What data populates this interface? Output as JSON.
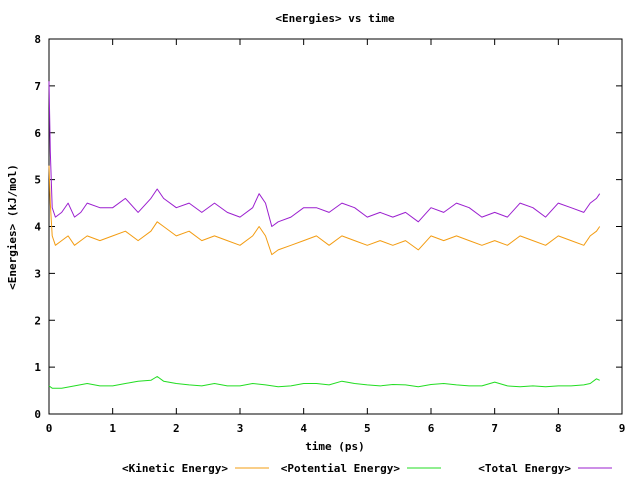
{
  "chart_data": {
    "type": "line",
    "title": "<Energies> vs time",
    "xlabel": "time (ps)",
    "ylabel": "<Energies> (kJ/mol)",
    "xlim": [
      0,
      9
    ],
    "ylim": [
      0,
      8
    ],
    "xticks": [
      "0",
      "1",
      "2",
      "3",
      "4",
      "5",
      "6",
      "7",
      "8",
      "9"
    ],
    "yticks": [
      "0",
      "1",
      "2",
      "3",
      "4",
      "5",
      "6",
      "7",
      "8"
    ],
    "grid": false,
    "legend_position": "bottom",
    "series": [
      {
        "name": "<Kinetic Energy>",
        "color": "#f39c12",
        "x": [
          0.0,
          0.02,
          0.05,
          0.1,
          0.2,
          0.3,
          0.4,
          0.5,
          0.6,
          0.8,
          1.0,
          1.2,
          1.4,
          1.6,
          1.7,
          1.8,
          2.0,
          2.2,
          2.4,
          2.6,
          2.8,
          3.0,
          3.2,
          3.3,
          3.4,
          3.5,
          3.6,
          3.8,
          4.0,
          4.2,
          4.4,
          4.6,
          4.8,
          5.0,
          5.2,
          5.4,
          5.6,
          5.8,
          6.0,
          6.2,
          6.4,
          6.6,
          6.8,
          7.0,
          7.2,
          7.4,
          7.6,
          7.8,
          8.0,
          8.2,
          8.4,
          8.5,
          8.6,
          8.65
        ],
        "y": [
          5.3,
          4.5,
          3.8,
          3.6,
          3.7,
          3.8,
          3.6,
          3.7,
          3.8,
          3.7,
          3.8,
          3.9,
          3.7,
          3.9,
          4.1,
          4.0,
          3.8,
          3.9,
          3.7,
          3.8,
          3.7,
          3.6,
          3.8,
          4.0,
          3.8,
          3.4,
          3.5,
          3.6,
          3.7,
          3.8,
          3.6,
          3.8,
          3.7,
          3.6,
          3.7,
          3.6,
          3.7,
          3.5,
          3.8,
          3.7,
          3.8,
          3.7,
          3.6,
          3.7,
          3.6,
          3.8,
          3.7,
          3.6,
          3.8,
          3.7,
          3.6,
          3.8,
          3.9,
          4.0
        ]
      },
      {
        "name": "<Potential Energy>",
        "color": "#22dd22",
        "x": [
          0.0,
          0.05,
          0.2,
          0.4,
          0.6,
          0.8,
          1.0,
          1.2,
          1.4,
          1.6,
          1.7,
          1.8,
          2.0,
          2.2,
          2.4,
          2.6,
          2.8,
          3.0,
          3.2,
          3.4,
          3.6,
          3.8,
          4.0,
          4.2,
          4.4,
          4.6,
          4.8,
          5.0,
          5.2,
          5.4,
          5.6,
          5.8,
          6.0,
          6.2,
          6.4,
          6.6,
          6.8,
          7.0,
          7.2,
          7.4,
          7.6,
          7.8,
          8.0,
          8.2,
          8.4,
          8.5,
          8.6,
          8.65
        ],
        "y": [
          0.6,
          0.55,
          0.55,
          0.6,
          0.65,
          0.6,
          0.6,
          0.65,
          0.7,
          0.72,
          0.8,
          0.7,
          0.65,
          0.62,
          0.6,
          0.65,
          0.6,
          0.6,
          0.65,
          0.62,
          0.58,
          0.6,
          0.65,
          0.65,
          0.62,
          0.7,
          0.65,
          0.62,
          0.6,
          0.63,
          0.62,
          0.58,
          0.63,
          0.65,
          0.62,
          0.6,
          0.6,
          0.68,
          0.6,
          0.58,
          0.6,
          0.58,
          0.6,
          0.6,
          0.62,
          0.65,
          0.75,
          0.72
        ]
      },
      {
        "name": "<Total Energy>",
        "color": "#9b1fcf",
        "x": [
          0.0,
          0.02,
          0.05,
          0.1,
          0.2,
          0.3,
          0.4,
          0.5,
          0.6,
          0.8,
          1.0,
          1.2,
          1.4,
          1.6,
          1.7,
          1.8,
          2.0,
          2.2,
          2.4,
          2.6,
          2.8,
          3.0,
          3.2,
          3.3,
          3.4,
          3.5,
          3.6,
          3.8,
          4.0,
          4.2,
          4.4,
          4.6,
          4.8,
          5.0,
          5.2,
          5.4,
          5.6,
          5.8,
          6.0,
          6.2,
          6.4,
          6.6,
          6.8,
          7.0,
          7.2,
          7.4,
          7.6,
          7.8,
          8.0,
          8.2,
          8.4,
          8.5,
          8.6,
          8.65
        ],
        "y": [
          7.1,
          5.6,
          4.4,
          4.2,
          4.3,
          4.5,
          4.2,
          4.3,
          4.5,
          4.4,
          4.4,
          4.6,
          4.3,
          4.6,
          4.8,
          4.6,
          4.4,
          4.5,
          4.3,
          4.5,
          4.3,
          4.2,
          4.4,
          4.7,
          4.5,
          4.0,
          4.1,
          4.2,
          4.4,
          4.4,
          4.3,
          4.5,
          4.4,
          4.2,
          4.3,
          4.2,
          4.3,
          4.1,
          4.4,
          4.3,
          4.5,
          4.4,
          4.2,
          4.3,
          4.2,
          4.5,
          4.4,
          4.2,
          4.5,
          4.4,
          4.3,
          4.5,
          4.6,
          4.7
        ]
      }
    ]
  }
}
